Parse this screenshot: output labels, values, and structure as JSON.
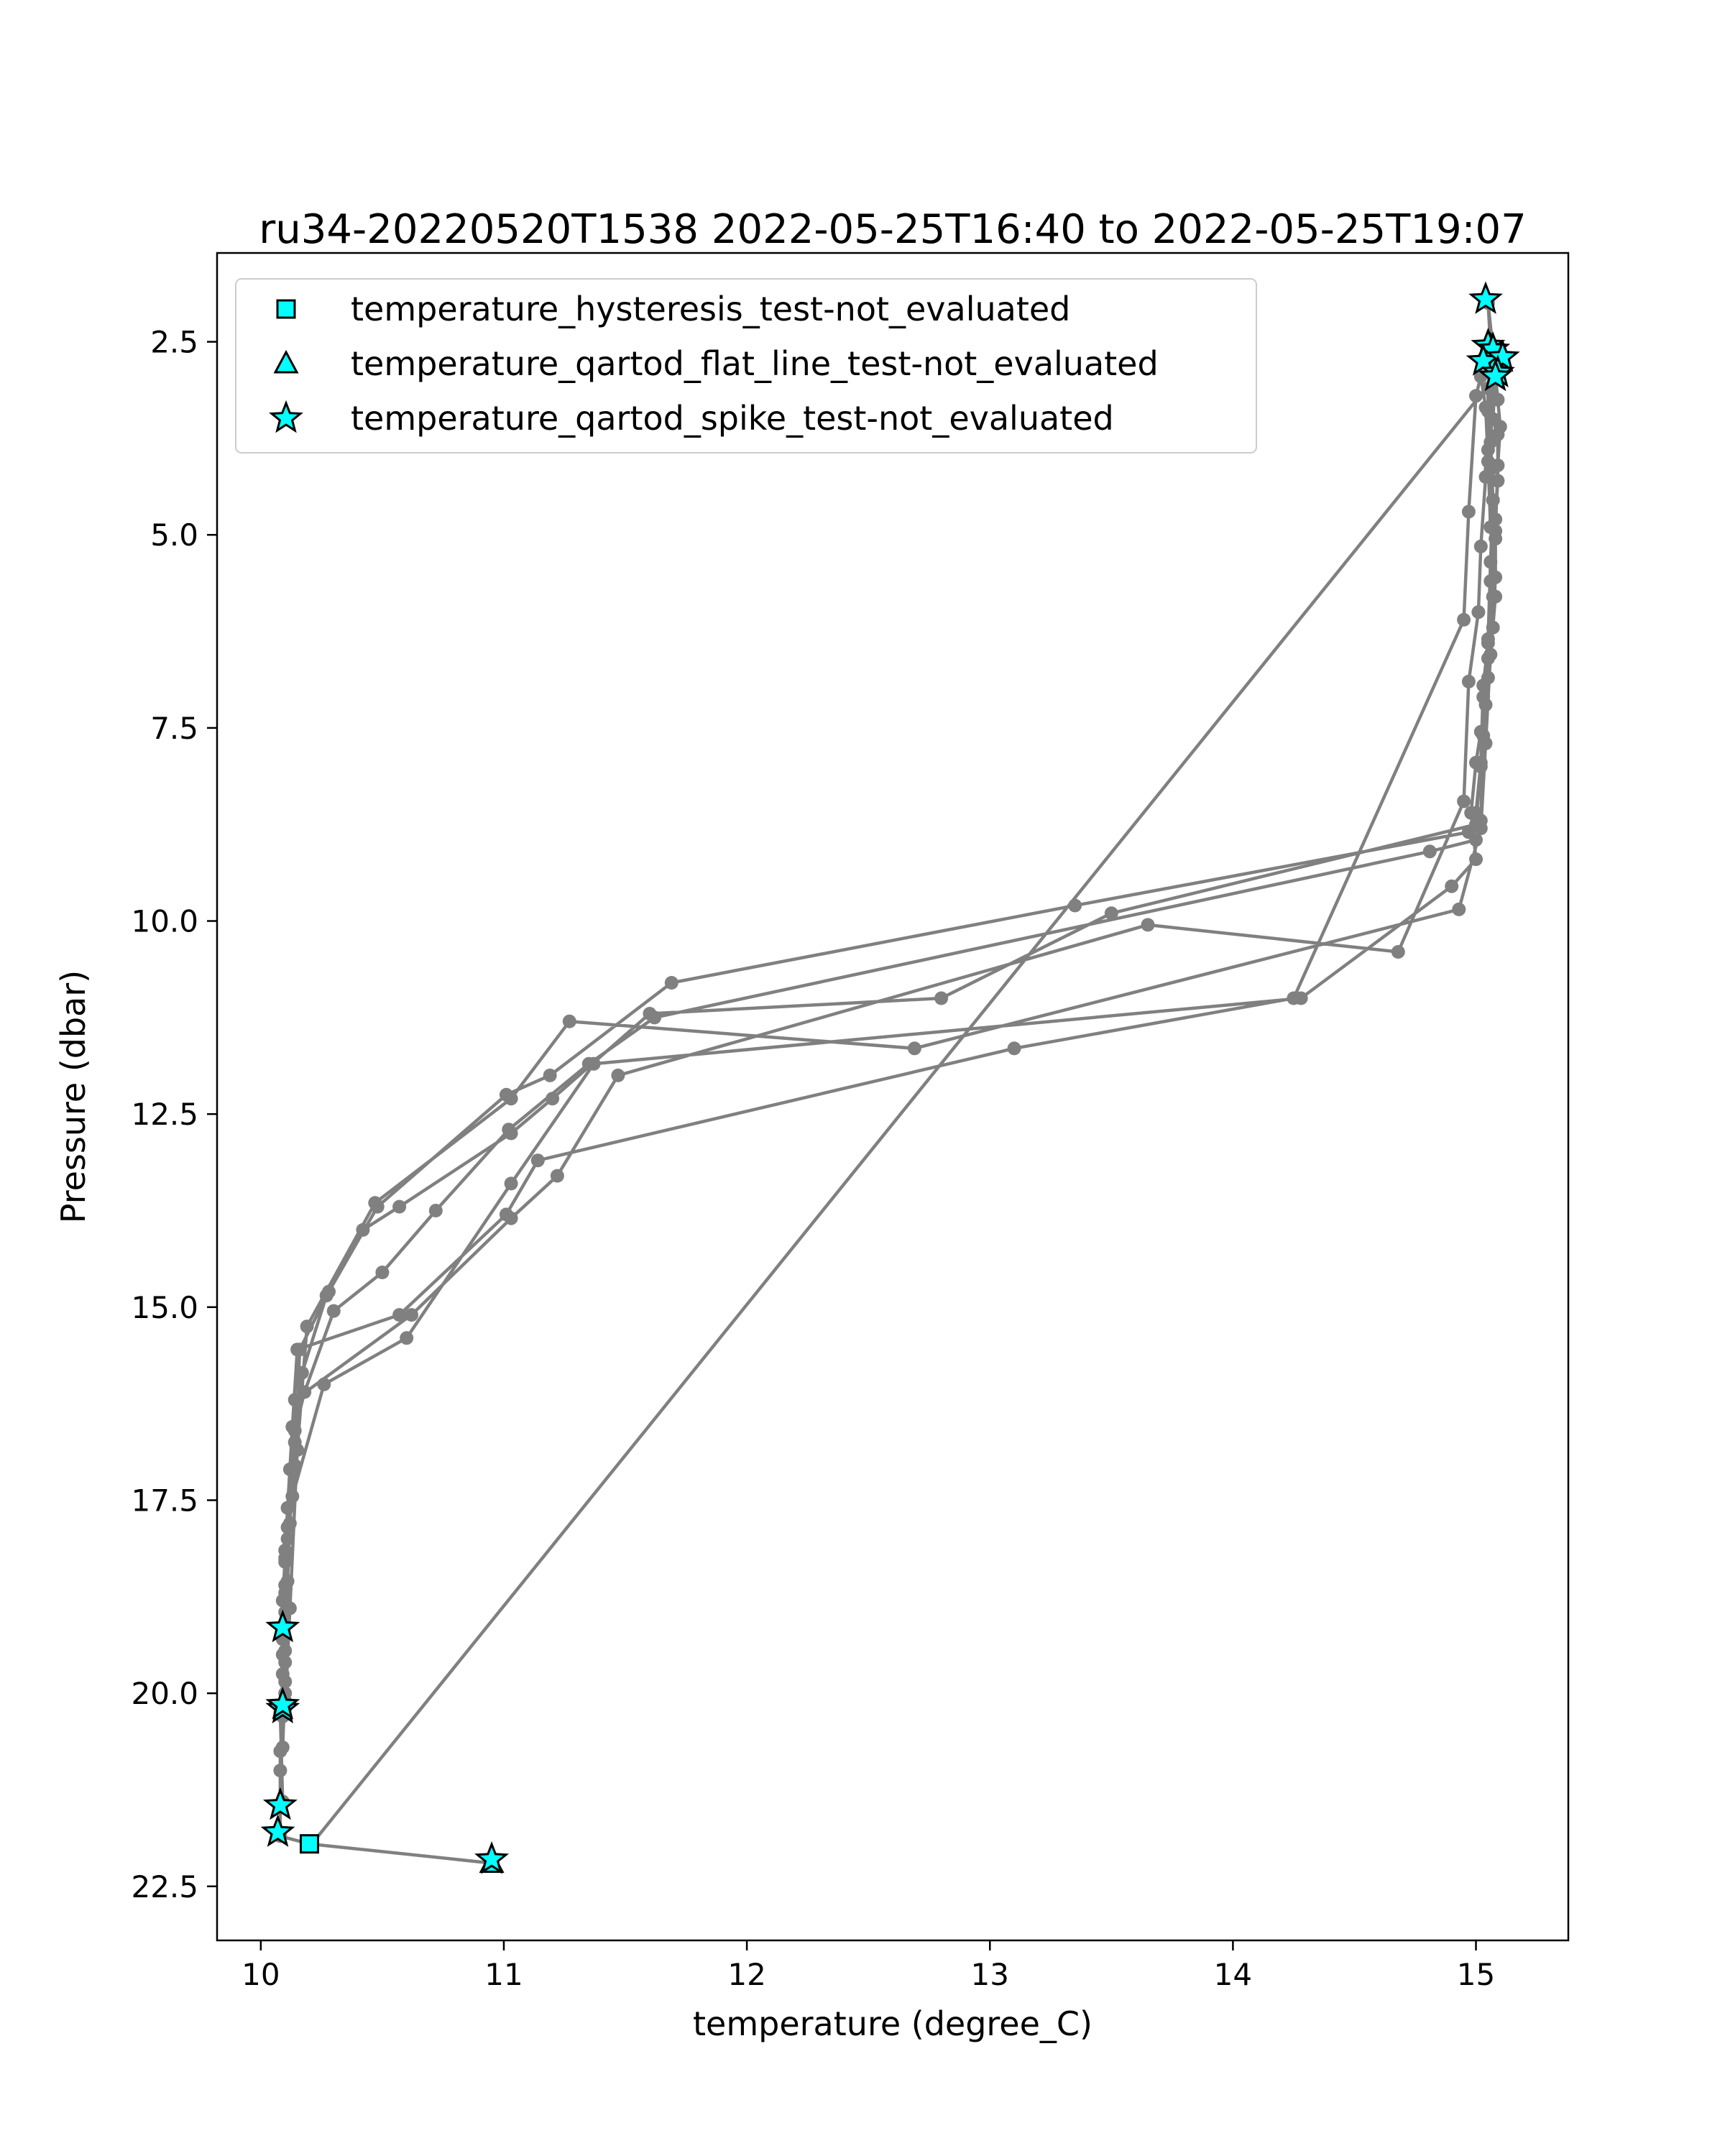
{
  "chart_data": {
    "type": "line",
    "title": "ru34-20220520T1538 2022-05-25T16:40 to 2022-05-25T19:07",
    "xlabel": "temperature (degree_C)",
    "ylabel": "Pressure (dbar)",
    "xlim": [
      9.82,
      15.38
    ],
    "ylim": [
      23.2,
      1.35
    ],
    "y_inverted": true,
    "grid": false,
    "legend_position": "top-left",
    "xticks": [
      {
        "value": 10,
        "label": "10"
      },
      {
        "value": 11,
        "label": "11"
      },
      {
        "value": 12,
        "label": "12"
      },
      {
        "value": 13,
        "label": "13"
      },
      {
        "value": 14,
        "label": "14"
      },
      {
        "value": 15,
        "label": "15"
      }
    ],
    "yticks": [
      {
        "value": 2.5,
        "label": "2.5"
      },
      {
        "value": 5.0,
        "label": "5.0"
      },
      {
        "value": 7.5,
        "label": "7.5"
      },
      {
        "value": 10.0,
        "label": "10.0"
      },
      {
        "value": 12.5,
        "label": "12.5"
      },
      {
        "value": 15.0,
        "label": "15.0"
      },
      {
        "value": 17.5,
        "label": "17.5"
      },
      {
        "value": 20.0,
        "label": "20.0"
      },
      {
        "value": 22.5,
        "label": "22.5"
      }
    ],
    "colors": {
      "profile_line": "#808080",
      "flag_fill": "#00ffff",
      "flag_edge": "#000000"
    },
    "profile": {
      "x": [
        10.95,
        10.2,
        10.08,
        10.08,
        10.08,
        10.09,
        10.09,
        10.1,
        10.09,
        10.1,
        10.1,
        10.11,
        10.12,
        10.14,
        10.18,
        10.3,
        10.5,
        10.72,
        11.02,
        11.35,
        11.62,
        14.81,
        15.0,
        15.02,
        15.03,
        15.05,
        15.07,
        15.08,
        15.07,
        15.06,
        15.05,
        15.05,
        15.06,
        15.08,
        15.07,
        15.09,
        15.09,
        15.08,
        15.08,
        15.07,
        15.05,
        15.04,
        15.02,
        15.0,
        14.98,
        15.0,
        14.9,
        14.28,
        11.37,
        11.03,
        10.6,
        10.26,
        10.13,
        10.1,
        10.1,
        10.09,
        10.1,
        10.08,
        10.09,
        10.1,
        10.11,
        10.12,
        10.14,
        10.17,
        10.27,
        10.42,
        10.57,
        11.03,
        11.2,
        11.6,
        12.8,
        13.5,
        15.0,
        15.02,
        15.03,
        15.05,
        15.06,
        15.07,
        15.06,
        15.07,
        15.05,
        15.04,
        15.02,
        15.01,
        14.97,
        14.95,
        14.68,
        13.65,
        11.47,
        11.22,
        11.03,
        10.62,
        10.14,
        10.11,
        10.1,
        10.09,
        10.1,
        10.09,
        10.1,
        10.12,
        10.15,
        10.19,
        10.47,
        11.03,
        11.27,
        12.69,
        14.93,
        15.02,
        15.04,
        15.06,
        15.08,
        15.06,
        15.05,
        15.04,
        15.02,
        15.0,
        14.97,
        14.95,
        14.25,
        13.1,
        11.14,
        11.01,
        10.57,
        10.15,
        10.13,
        10.11,
        10.1,
        10.09,
        10.1,
        10.08,
        10.09,
        10.08,
        10.09,
        10.11,
        10.14,
        10.16,
        10.28,
        10.48,
        11.01,
        11.19,
        11.69,
        13.35,
        14.97,
        15.0,
        15.02,
        15.03,
        15.05,
        15.06,
        15.08,
        15.09,
        15.1,
        15.09,
        15.07,
        15.05,
        15.06,
        15.1,
        15.08,
        10.21
      ],
      "y": [
        22.2,
        21.95,
        21.85,
        21.45,
        20.75,
        20.3,
        20.15,
        19.6,
        19.15,
        18.7,
        18.3,
        17.85,
        17.1,
        16.6,
        16.1,
        15.05,
        14.55,
        13.75,
        12.7,
        11.85,
        11.25,
        9.1,
        8.95,
        8.7,
        7.6,
        6.6,
        5.8,
        5.05,
        4.55,
        4.15,
        3.9,
        3.1,
        2.75,
        2.95,
        3.5,
        3.7,
        4.3,
        4.8,
        5.55,
        6.2,
        6.85,
        7.2,
        7.55,
        7.95,
        8.6,
        9.2,
        9.55,
        11.0,
        11.85,
        13.4,
        15.4,
        16.0,
        17.45,
        18.15,
        18.95,
        19.5,
        20.1,
        21.0,
        20.7,
        19.85,
        18.55,
        17.8,
        16.75,
        15.85,
        14.85,
        14.0,
        13.7,
        12.75,
        12.3,
        11.2,
        11.0,
        9.9,
        8.75,
        8.0,
        7.1,
        6.35,
        5.35,
        4.55,
        3.8,
        3.2,
        3.4,
        4.25,
        5.15,
        6.0,
        6.9,
        8.45,
        10.4,
        10.05,
        12.0,
        13.3,
        13.85,
        15.1,
        16.2,
        17.6,
        18.6,
        19.3,
        20.0,
        20.3,
        20.2,
        18.9,
        16.85,
        15.25,
        13.65,
        12.3,
        11.3,
        11.65,
        9.85,
        8.8,
        7.7,
        6.55,
        5.8,
        4.9,
        4.05,
        3.35,
        2.95,
        3.2,
        4.7,
        6.1,
        11.0,
        11.65,
        13.1,
        13.8,
        15.1,
        15.55,
        16.55,
        17.6,
        18.25,
        18.8,
        19.45,
        20.25,
        21.4,
        21.45,
        19.75,
        18.0,
        17.05,
        15.55,
        14.8,
        13.7,
        12.25,
        12.0,
        10.8,
        9.8,
        8.85,
        8.6,
        7.95,
        6.95,
        6.4,
        5.6,
        4.95,
        4.1,
        3.6,
        3.25,
        2.6,
        2.0,
        2.55,
        2.75,
        2.95,
        21.95
      ]
    },
    "series": [
      {
        "name": "temperature_hysteresis_test-not_evaluated",
        "marker": "square",
        "x": [
          10.2
        ],
        "y": [
          21.95
        ]
      },
      {
        "name": "temperature_qartod_flat_line_test-not_evaluated",
        "marker": "triangle",
        "x": [
          10.95,
          15.06,
          15.08
        ],
        "y": [
          22.2,
          2.55,
          2.8
        ]
      },
      {
        "name": "temperature_qartod_spike_test-not_evaluated",
        "marker": "star",
        "x": [
          10.95,
          10.07,
          10.08,
          10.09,
          10.09,
          10.09,
          15.04,
          15.05,
          15.07,
          15.03,
          15.11,
          15.09,
          15.08
        ],
        "y": [
          22.15,
          21.8,
          21.45,
          20.2,
          20.15,
          19.15,
          1.95,
          2.55,
          2.6,
          2.75,
          2.7,
          2.9,
          2.95
        ]
      }
    ]
  }
}
